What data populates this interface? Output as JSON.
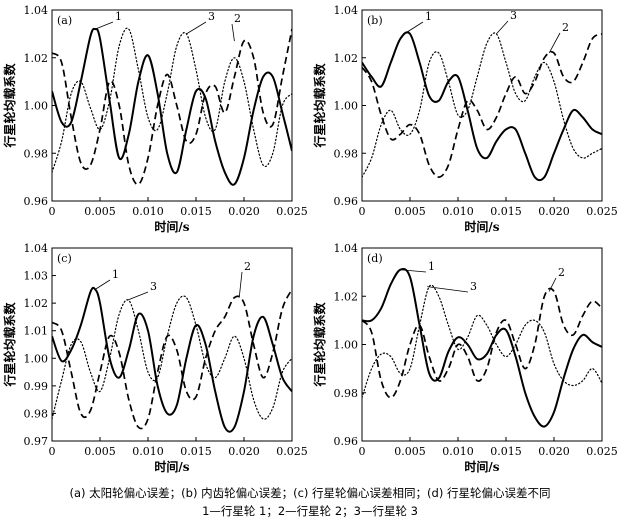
{
  "caption": {
    "line1": "(a) 太阳轮偏心误差；(b) 内齿轮偏心误差；(c) 行星轮偏心误差相同；(d) 行星轮偏心误差不同",
    "line2": "1—行星轮 1；2—行星轮 2；3—行星轮 3"
  },
  "chart_data": [
    {
      "type": "line",
      "panel_label": "(a)",
      "xlabel": "时间/s",
      "ylabel": "行星轮均载系数",
      "xlim": [
        0,
        0.025
      ],
      "ylim": [
        0.96,
        1.04
      ],
      "xticks": [
        "0",
        "0.005",
        "0.010",
        "0.015",
        "0.020",
        "0.025"
      ],
      "yticks": [
        "0.96",
        "0.98",
        "1.00",
        "1.02",
        "1.04"
      ],
      "series": [
        {
          "name": "1",
          "style": "solid",
          "x": [
            0,
            0.001,
            0.002,
            0.003,
            0.004,
            0.0045,
            0.005,
            0.006,
            0.007,
            0.008,
            0.009,
            0.01,
            0.011,
            0.012,
            0.013,
            0.014,
            0.015,
            0.016,
            0.017,
            0.018,
            0.019,
            0.02,
            0.021,
            0.022,
            0.023,
            0.024,
            0.025
          ],
          "y": [
            1.006,
            0.993,
            0.993,
            1.01,
            1.029,
            1.032,
            1.028,
            1.002,
            0.978,
            0.988,
            1.01,
            1.021,
            1.005,
            0.98,
            0.972,
            0.99,
            1.006,
            1.003,
            0.985,
            0.972,
            0.967,
            0.978,
            0.998,
            1.012,
            1.012,
            0.997,
            0.981
          ]
        },
        {
          "name": "2",
          "style": "dashed",
          "x": [
            0,
            0.001,
            0.002,
            0.003,
            0.004,
            0.005,
            0.006,
            0.007,
            0.008,
            0.009,
            0.01,
            0.011,
            0.012,
            0.013,
            0.014,
            0.015,
            0.016,
            0.017,
            0.018,
            0.019,
            0.02,
            0.021,
            0.022,
            0.023,
            0.024,
            0.025
          ],
          "y": [
            1.022,
            1.018,
            0.995,
            0.976,
            0.975,
            0.99,
            1.01,
            1.0,
            0.975,
            0.967,
            0.978,
            1.0,
            1.013,
            1.0,
            0.985,
            0.988,
            1.005,
            1.008,
            0.997,
            1.012,
            1.027,
            1.02,
            0.997,
            0.992,
            1.012,
            1.032
          ]
        },
        {
          "name": "3",
          "style": "dotted",
          "x": [
            0,
            0.001,
            0.002,
            0.003,
            0.004,
            0.005,
            0.006,
            0.007,
            0.008,
            0.009,
            0.01,
            0.011,
            0.012,
            0.013,
            0.014,
            0.015,
            0.016,
            0.017,
            0.018,
            0.019,
            0.02,
            0.021,
            0.022,
            0.023,
            0.024,
            0.025
          ],
          "y": [
            0.972,
            0.985,
            1.005,
            1.01,
            0.999,
            0.99,
            1.002,
            1.025,
            1.032,
            1.015,
            0.995,
            0.99,
            1.005,
            1.025,
            1.03,
            1.015,
            0.995,
            0.99,
            1.01,
            1.02,
            1.01,
            0.99,
            0.975,
            0.98,
            1.0,
            1.005
          ]
        }
      ]
    },
    {
      "type": "line",
      "panel_label": "(b)",
      "xlabel": "时间/s",
      "ylabel": "行星轮均载系数",
      "xlim": [
        0,
        0.025
      ],
      "ylim": [
        0.96,
        1.04
      ],
      "xticks": [
        "0",
        "0.005",
        "0.010",
        "0.015",
        "0.020",
        "0.025"
      ],
      "yticks": [
        "0.96",
        "0.98",
        "1.00",
        "1.02",
        "1.04"
      ],
      "series": [
        {
          "name": "1",
          "style": "solid",
          "x": [
            0,
            0.001,
            0.002,
            0.003,
            0.004,
            0.005,
            0.006,
            0.007,
            0.008,
            0.009,
            0.01,
            0.011,
            0.012,
            0.013,
            0.014,
            0.015,
            0.016,
            0.017,
            0.018,
            0.019,
            0.02,
            0.021,
            0.022,
            0.023,
            0.024,
            0.025
          ],
          "y": [
            1.018,
            1.012,
            1.008,
            1.018,
            1.028,
            1.03,
            1.018,
            1.004,
            1.002,
            1.01,
            1.012,
            0.998,
            0.982,
            0.978,
            0.985,
            0.99,
            0.99,
            0.98,
            0.97,
            0.97,
            0.98,
            0.99,
            0.998,
            0.995,
            0.99,
            0.988
          ]
        },
        {
          "name": "2",
          "style": "dashed",
          "x": [
            0,
            0.001,
            0.002,
            0.003,
            0.004,
            0.005,
            0.006,
            0.007,
            0.008,
            0.009,
            0.01,
            0.011,
            0.012,
            0.013,
            0.014,
            0.015,
            0.016,
            0.017,
            0.018,
            0.019,
            0.02,
            0.021,
            0.022,
            0.023,
            0.024,
            0.025
          ],
          "y": [
            1.016,
            1.01,
            0.996,
            0.986,
            0.988,
            0.992,
            0.988,
            0.975,
            0.97,
            0.975,
            0.99,
            1.002,
            0.998,
            0.99,
            0.995,
            1.005,
            1.012,
            1.005,
            1.01,
            1.02,
            1.022,
            1.012,
            1.01,
            1.018,
            1.028,
            1.03
          ]
        },
        {
          "name": "3",
          "style": "dotted",
          "x": [
            0,
            0.001,
            0.002,
            0.003,
            0.004,
            0.005,
            0.006,
            0.007,
            0.008,
            0.009,
            0.01,
            0.011,
            0.012,
            0.013,
            0.014,
            0.015,
            0.016,
            0.017,
            0.018,
            0.019,
            0.02,
            0.021,
            0.022,
            0.023,
            0.024,
            0.025
          ],
          "y": [
            0.97,
            0.978,
            0.992,
            0.998,
            0.99,
            0.988,
            0.998,
            1.018,
            1.022,
            1.01,
            0.996,
            0.998,
            1.012,
            1.026,
            1.03,
            1.018,
            1.005,
            1.002,
            1.012,
            1.018,
            1.01,
            0.994,
            0.982,
            0.978,
            0.98,
            0.982
          ]
        }
      ]
    },
    {
      "type": "line",
      "panel_label": "(c)",
      "xlabel": "时间/s",
      "ylabel": "行星轮均载系数",
      "xlim": [
        0,
        0.025
      ],
      "ylim": [
        0.97,
        1.04
      ],
      "xticks": [
        "0",
        "0.005",
        "0.010",
        "0.015",
        "0.020",
        "0.025"
      ],
      "yticks": [
        "0.97",
        "0.98",
        "0.99",
        "1.00",
        "1.01",
        "1.02",
        "1.03",
        "1.04"
      ],
      "series": [
        {
          "name": "1",
          "style": "solid",
          "x": [
            0,
            0.001,
            0.002,
            0.003,
            0.004,
            0.0045,
            0.005,
            0.006,
            0.007,
            0.008,
            0.009,
            0.01,
            0.011,
            0.012,
            0.013,
            0.014,
            0.015,
            0.016,
            0.017,
            0.018,
            0.019,
            0.02,
            0.021,
            0.022,
            0.023,
            0.024,
            0.025
          ],
          "y": [
            1.008,
            0.999,
            1.003,
            1.012,
            1.024,
            1.025,
            1.02,
            1.0,
            0.993,
            1.003,
            1.016,
            1.01,
            0.99,
            0.98,
            0.983,
            1.0,
            1.012,
            1.005,
            0.988,
            0.975,
            0.975,
            0.988,
            1.008,
            1.015,
            1.005,
            0.993,
            0.988
          ]
        },
        {
          "name": "2",
          "style": "dashed",
          "x": [
            0,
            0.001,
            0.002,
            0.003,
            0.004,
            0.005,
            0.006,
            0.007,
            0.008,
            0.009,
            0.01,
            0.011,
            0.012,
            0.013,
            0.014,
            0.015,
            0.016,
            0.017,
            0.018,
            0.019,
            0.02,
            0.021,
            0.022,
            0.023,
            0.024,
            0.025
          ],
          "y": [
            1.013,
            1.01,
            0.995,
            0.98,
            0.981,
            0.995,
            1.008,
            1.002,
            0.985,
            0.975,
            0.978,
            0.995,
            1.008,
            1.003,
            0.988,
            0.986,
            1.0,
            1.01,
            1.015,
            1.022,
            1.02,
            1.005,
            0.993,
            1.002,
            1.018,
            1.025
          ]
        },
        {
          "name": "3",
          "style": "dotted",
          "x": [
            0,
            0.001,
            0.002,
            0.003,
            0.004,
            0.005,
            0.006,
            0.007,
            0.008,
            0.009,
            0.01,
            0.011,
            0.012,
            0.013,
            0.014,
            0.015,
            0.016,
            0.017,
            0.018,
            0.019,
            0.02,
            0.021,
            0.022,
            0.023,
            0.024,
            0.025
          ],
          "y": [
            0.978,
            0.992,
            1.005,
            1.006,
            0.995,
            0.988,
            1.0,
            1.016,
            1.021,
            1.01,
            0.995,
            0.993,
            1.008,
            1.02,
            1.022,
            1.012,
            0.998,
            0.993,
            1.0,
            1.008,
            1.0,
            0.985,
            0.978,
            0.982,
            0.995,
            1.0
          ]
        }
      ]
    },
    {
      "type": "line",
      "panel_label": "(d)",
      "xlabel": "时间/s",
      "ylabel": "行星轮均载系数",
      "xlim": [
        0,
        0.025
      ],
      "ylim": [
        0.96,
        1.04
      ],
      "xticks": [
        "0",
        "0.005",
        "0.010",
        "0.015",
        "0.020",
        "0.025"
      ],
      "yticks": [
        "0.96",
        "0.98",
        "1.00",
        "1.02",
        "1.04"
      ],
      "series": [
        {
          "name": "1",
          "style": "solid",
          "x": [
            0,
            0.001,
            0.002,
            0.003,
            0.004,
            0.005,
            0.006,
            0.007,
            0.008,
            0.009,
            0.01,
            0.011,
            0.012,
            0.013,
            0.014,
            0.015,
            0.016,
            0.017,
            0.018,
            0.019,
            0.02,
            0.021,
            0.022,
            0.023,
            0.024,
            0.025
          ],
          "y": [
            1.01,
            1.01,
            1.015,
            1.025,
            1.031,
            1.028,
            1.008,
            0.988,
            0.986,
            0.997,
            1.003,
            1.0,
            0.994,
            0.996,
            1.004,
            1.006,
            0.995,
            0.98,
            0.97,
            0.966,
            0.972,
            0.986,
            0.998,
            1.004,
            1.001,
            0.999
          ]
        },
        {
          "name": "2",
          "style": "dashed",
          "x": [
            0,
            0.001,
            0.002,
            0.003,
            0.004,
            0.005,
            0.006,
            0.007,
            0.008,
            0.009,
            0.01,
            0.011,
            0.012,
            0.013,
            0.014,
            0.015,
            0.016,
            0.017,
            0.018,
            0.019,
            0.02,
            0.021,
            0.022,
            0.023,
            0.024,
            0.025
          ],
          "y": [
            1.01,
            1.005,
            0.985,
            0.978,
            0.985,
            1.0,
            1.008,
            0.995,
            0.985,
            0.99,
            1.0,
            0.995,
            0.985,
            0.99,
            1.005,
            1.01,
            1.0,
            0.99,
            1.0,
            1.02,
            1.022,
            1.008,
            1.004,
            1.012,
            1.018,
            1.015
          ]
        },
        {
          "name": "3",
          "style": "dotted",
          "x": [
            0,
            0.001,
            0.002,
            0.003,
            0.004,
            0.005,
            0.006,
            0.007,
            0.008,
            0.009,
            0.01,
            0.011,
            0.012,
            0.013,
            0.014,
            0.015,
            0.016,
            0.017,
            0.018,
            0.019,
            0.02,
            0.021,
            0.022,
            0.023,
            0.024,
            0.025
          ],
          "y": [
            0.978,
            0.99,
            0.996,
            0.995,
            0.988,
            0.99,
            1.008,
            1.024,
            1.02,
            1.008,
            0.998,
            1.003,
            1.012,
            1.008,
            1.0,
            0.995,
            1.0,
            1.008,
            1.01,
            1.005,
            0.992,
            0.985,
            0.983,
            0.985,
            0.99,
            0.984
          ]
        }
      ]
    }
  ]
}
